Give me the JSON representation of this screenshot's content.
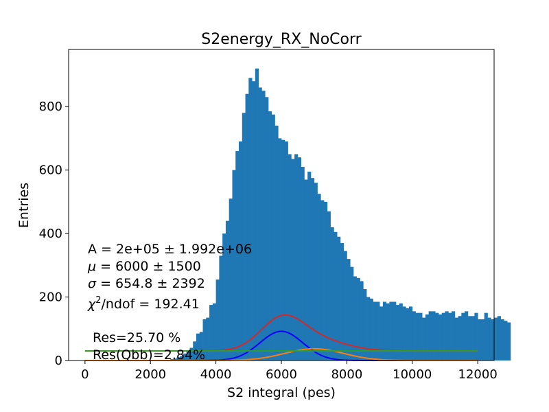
{
  "chart_data": {
    "type": "bar",
    "title": "S2energy_RX_NoCorr",
    "xlabel": "S2 integral (pes)",
    "ylabel": "Entries",
    "xlim": [
      -500,
      12500
    ],
    "ylim": [
      0,
      980
    ],
    "x_ticks": [
      0,
      2000,
      4000,
      6000,
      8000,
      10000,
      12000
    ],
    "y_ticks": [
      0,
      200,
      400,
      600,
      800
    ],
    "grid": false,
    "histogram": {
      "bin_edges_start": 0,
      "bin_width": 100,
      "color": "#1f77b4",
      "counts": [
        0,
        0,
        0,
        0,
        0,
        0,
        0,
        0,
        0,
        0,
        0,
        0,
        0,
        0,
        0,
        0,
        0,
        0,
        0,
        0,
        0,
        0,
        0,
        0,
        1,
        2,
        4,
        6,
        10,
        14,
        22,
        31,
        40,
        60,
        85,
        90,
        130,
        135,
        175,
        180,
        255,
        330,
        400,
        440,
        510,
        600,
        660,
        690,
        780,
        840,
        890,
        880,
        920,
        860,
        850,
        830,
        785,
        775,
        740,
        700,
        695,
        690,
        650,
        635,
        650,
        640,
        610,
        570,
        595,
        575,
        560,
        525,
        505,
        500,
        470,
        420,
        405,
        390,
        370,
        345,
        320,
        295,
        265,
        260,
        250,
        225,
        200,
        195,
        185,
        185,
        170,
        185,
        180,
        185,
        185,
        175,
        180,
        170,
        165,
        170,
        155,
        150,
        150,
        135,
        145,
        155,
        155,
        150,
        145,
        150,
        155,
        150,
        155,
        135,
        140,
        150,
        155,
        140,
        140,
        150,
        130,
        130,
        150,
        135,
        130,
        135,
        140,
        130,
        125,
        120
      ]
    },
    "fit_curves": [
      {
        "name": "total",
        "color": "#d62728"
      },
      {
        "name": "gaussian",
        "color": "#0000ff"
      },
      {
        "name": "second gaussian",
        "color": "#ff7f0e"
      },
      {
        "name": "background",
        "color": "#2ca02c"
      }
    ],
    "fit_params": {
      "background": 30,
      "g1": {
        "amplitude": 92,
        "mean": 6000,
        "sigma": 654.8
      },
      "g2": {
        "amplitude": 37,
        "mean": 7000,
        "sigma": 900
      }
    },
    "annotations": {
      "A": "A = 2e+05 ± 1.992e+06",
      "mu_symbol": "μ",
      "mu": " = 6000 ± 1500",
      "sigma_symbol": "σ",
      "sigma": " = 654.8 ± 2392",
      "chi_symbol": "χ",
      "chi_sup": "2",
      "chi": "/ndof = 192.41",
      "res": "Res=25.70 %",
      "res_qbb": "Res(Qbb)=2.84%"
    }
  }
}
